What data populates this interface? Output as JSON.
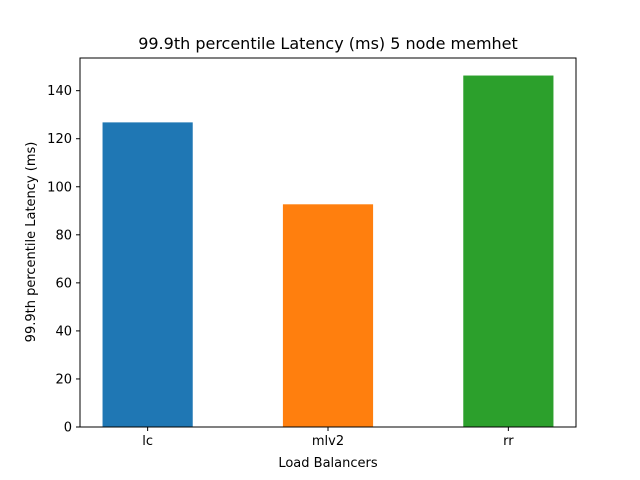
{
  "chart_data": {
    "type": "bar",
    "title": "99.9th percentile Latency (ms) 5 node memhet",
    "xlabel": "Load Balancers",
    "ylabel": "99.9th percentile Latency (ms)",
    "categories": [
      "lc",
      "mlv2",
      "rr"
    ],
    "values": [
      126.8,
      92.7,
      146.3
    ],
    "colors": [
      "#1f77b4",
      "#ff7f0e",
      "#2ca02c"
    ],
    "ylim": [
      0,
      153.6
    ],
    "yticks": [
      0,
      20,
      40,
      60,
      80,
      100,
      120,
      140
    ],
    "grid": false
  }
}
